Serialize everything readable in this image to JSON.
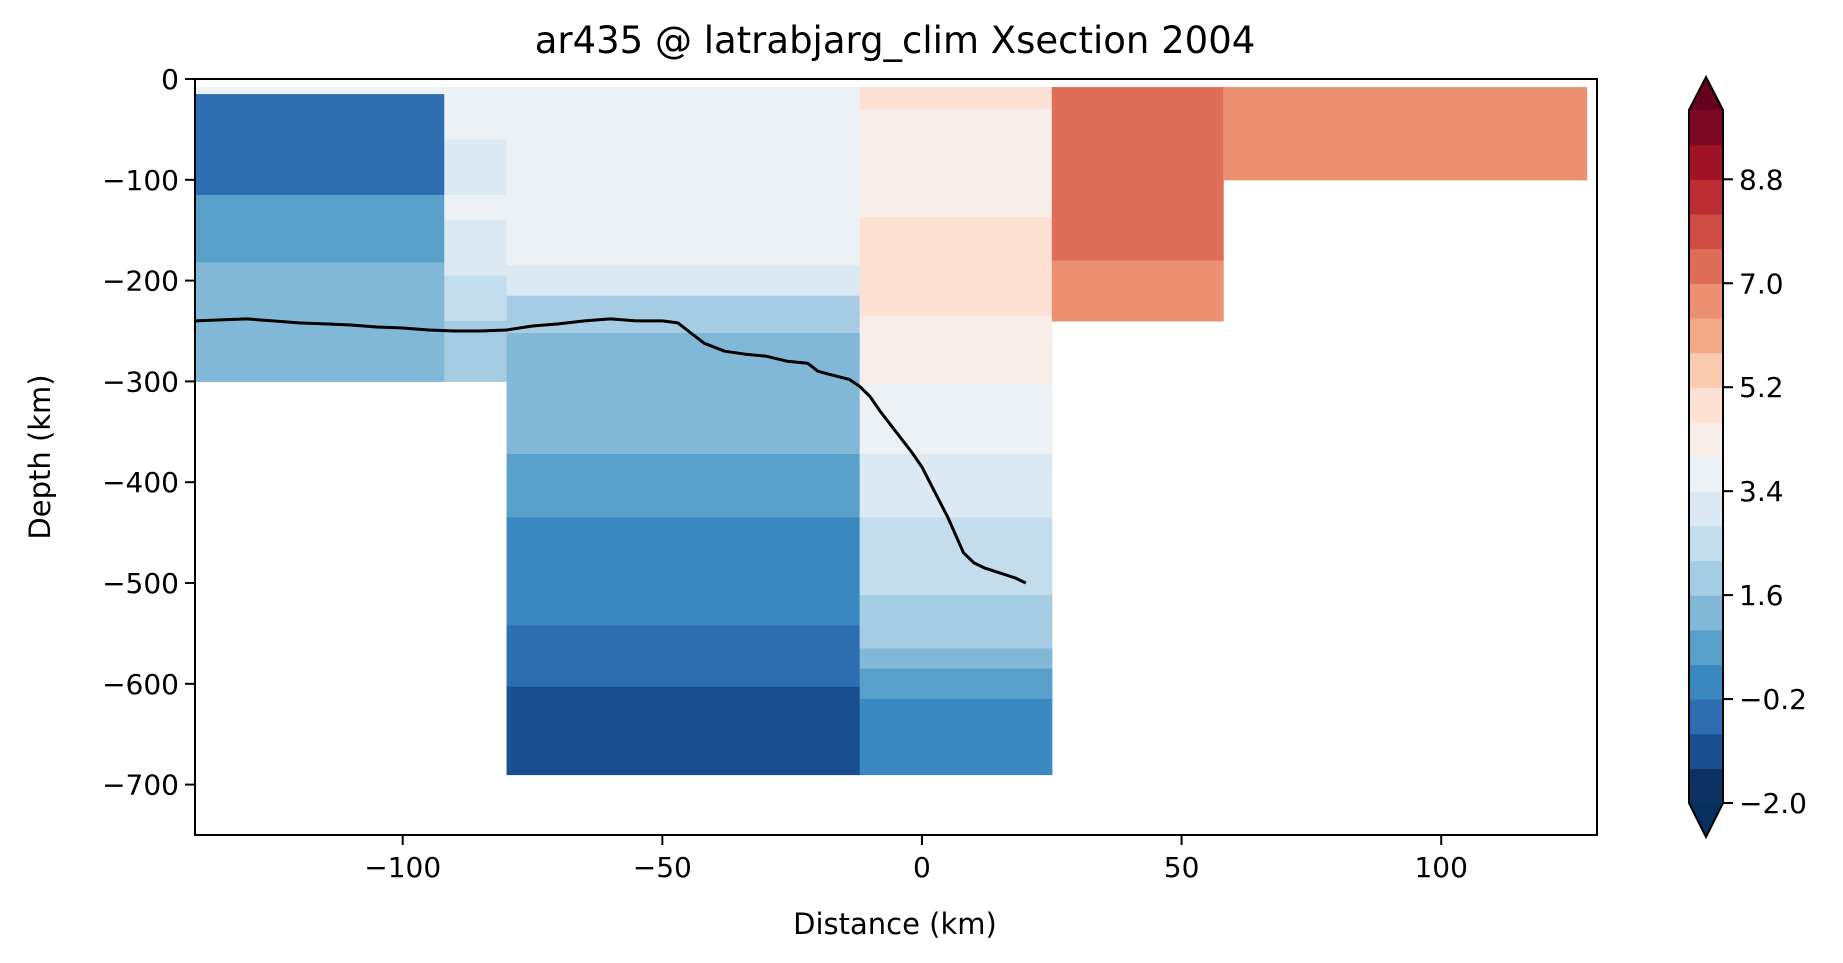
{
  "chart_data": {
    "type": "heatmap",
    "title": "ar435 @ latrabjarg_clim Xsection 2004",
    "xlabel": "Distance (km)",
    "ylabel": "Depth (km)",
    "xlim": [
      -140,
      130
    ],
    "ylim": [
      -750,
      0
    ],
    "x_ticks": [
      -100,
      -50,
      0,
      50,
      100
    ],
    "x_tick_labels": [
      "−100",
      "−50",
      "0",
      "50",
      "100"
    ],
    "y_ticks": [
      0,
      -100,
      -200,
      -300,
      -400,
      -500,
      -600,
      -700
    ],
    "y_tick_labels": [
      "0",
      "−100",
      "−200",
      "−300",
      "−400",
      "−500",
      "−600",
      "−700"
    ],
    "grid": false,
    "colorbar": {
      "levels": [
        -2.0,
        -1.4,
        -0.8,
        -0.2,
        0.4,
        1.0,
        1.6,
        2.2,
        2.8,
        3.4,
        4.0,
        4.6,
        5.2,
        5.8,
        6.4,
        7.0,
        7.6,
        8.2,
        8.8,
        9.4,
        10.0
      ],
      "colors": [
        "#0c3162",
        "#1a4f8f",
        "#2e6db0",
        "#3b88c0",
        "#58a0ca",
        "#81b8d8",
        "#a5cce3",
        "#c3ddec",
        "#dce9f2",
        "#ecf1f5",
        "#f8eee9",
        "#fbe0d3",
        "#f9c9b0",
        "#f3a886",
        "#eb9172",
        "#de6e58",
        "#cd4d45",
        "#bb2c34",
        "#a11428",
        "#7c0823"
      ],
      "extend": "both",
      "tick_values": [
        -2.0,
        -0.2,
        1.6,
        3.4,
        5.2,
        7.0,
        8.8
      ],
      "tick_labels": [
        "−2.0",
        "−0.2",
        "1.6",
        "3.4",
        "5.2",
        "7.0",
        "8.8"
      ]
    },
    "columns": [
      {
        "x0": -140,
        "x1": -92,
        "cells": [
          [
            -8,
            -15,
            3.7
          ],
          [
            -15,
            -115,
            -0.4
          ],
          [
            -115,
            -182,
            0.7
          ],
          [
            -182,
            -300,
            1.3
          ]
        ]
      },
      {
        "x0": -92,
        "x1": -80,
        "cells": [
          [
            -8,
            -60,
            3.4
          ],
          [
            -60,
            -115,
            2.9
          ],
          [
            -115,
            -140,
            3.4
          ],
          [
            -140,
            -195,
            2.9
          ],
          [
            -195,
            -240,
            2.5
          ],
          [
            -240,
            -300,
            2.0
          ]
        ]
      },
      {
        "x0": -80,
        "x1": -12,
        "cells": [
          [
            -8,
            -185,
            3.4
          ],
          [
            -185,
            -215,
            2.9
          ],
          [
            -215,
            -252,
            2.0
          ],
          [
            -252,
            -372,
            1.3
          ],
          [
            -372,
            -435,
            0.7
          ],
          [
            -435,
            -542,
            0.0
          ],
          [
            -542,
            -603,
            -0.6
          ],
          [
            -603,
            -690,
            -1.2
          ]
        ]
      },
      {
        "x0": -12,
        "x1": 25,
        "cells": [
          [
            -8,
            -30,
            4.8
          ],
          [
            -30,
            -137,
            4.2
          ],
          [
            -137,
            -235,
            4.8
          ],
          [
            -235,
            -303,
            4.2
          ],
          [
            -303,
            -372,
            3.7
          ],
          [
            -372,
            -435,
            3.1
          ],
          [
            -435,
            -512,
            2.5
          ],
          [
            -512,
            -565,
            2.0
          ],
          [
            -565,
            -585,
            1.3
          ],
          [
            -585,
            -615,
            0.7
          ],
          [
            -615,
            -690,
            0.0
          ]
        ]
      },
      {
        "x0": 25,
        "x1": 58,
        "cells": [
          [
            -8,
            -180,
            7.2
          ],
          [
            -180,
            -240,
            6.6
          ]
        ]
      },
      {
        "x0": 58,
        "x1": 128,
        "cells": [
          [
            -8,
            -100,
            6.6
          ]
        ]
      }
    ],
    "line": {
      "color": "#000000",
      "x": [
        -140,
        -135,
        -130,
        -125,
        -120,
        -115,
        -110,
        -105,
        -100,
        -95,
        -90,
        -85,
        -80,
        -75,
        -70,
        -65,
        -60,
        -55,
        -50,
        -47,
        -45,
        -42,
        -38,
        -34,
        -30,
        -26,
        -22,
        -20,
        -17,
        -14,
        -12,
        -10,
        -8,
        -5,
        -2,
        0,
        2,
        5,
        8,
        10,
        12,
        15,
        18,
        20
      ],
      "y": [
        -240,
        -239,
        -238,
        -240,
        -242,
        -243,
        -244,
        -246,
        -247,
        -249,
        -250,
        -250,
        -249,
        -245,
        -243,
        -240,
        -238,
        -240,
        -240,
        -242,
        -250,
        -262,
        -270,
        -273,
        -275,
        -280,
        -282,
        -290,
        -294,
        -298,
        -305,
        -315,
        -330,
        -350,
        -370,
        -385,
        -405,
        -435,
        -470,
        -480,
        -485,
        -490,
        -495,
        -500
      ]
    }
  }
}
